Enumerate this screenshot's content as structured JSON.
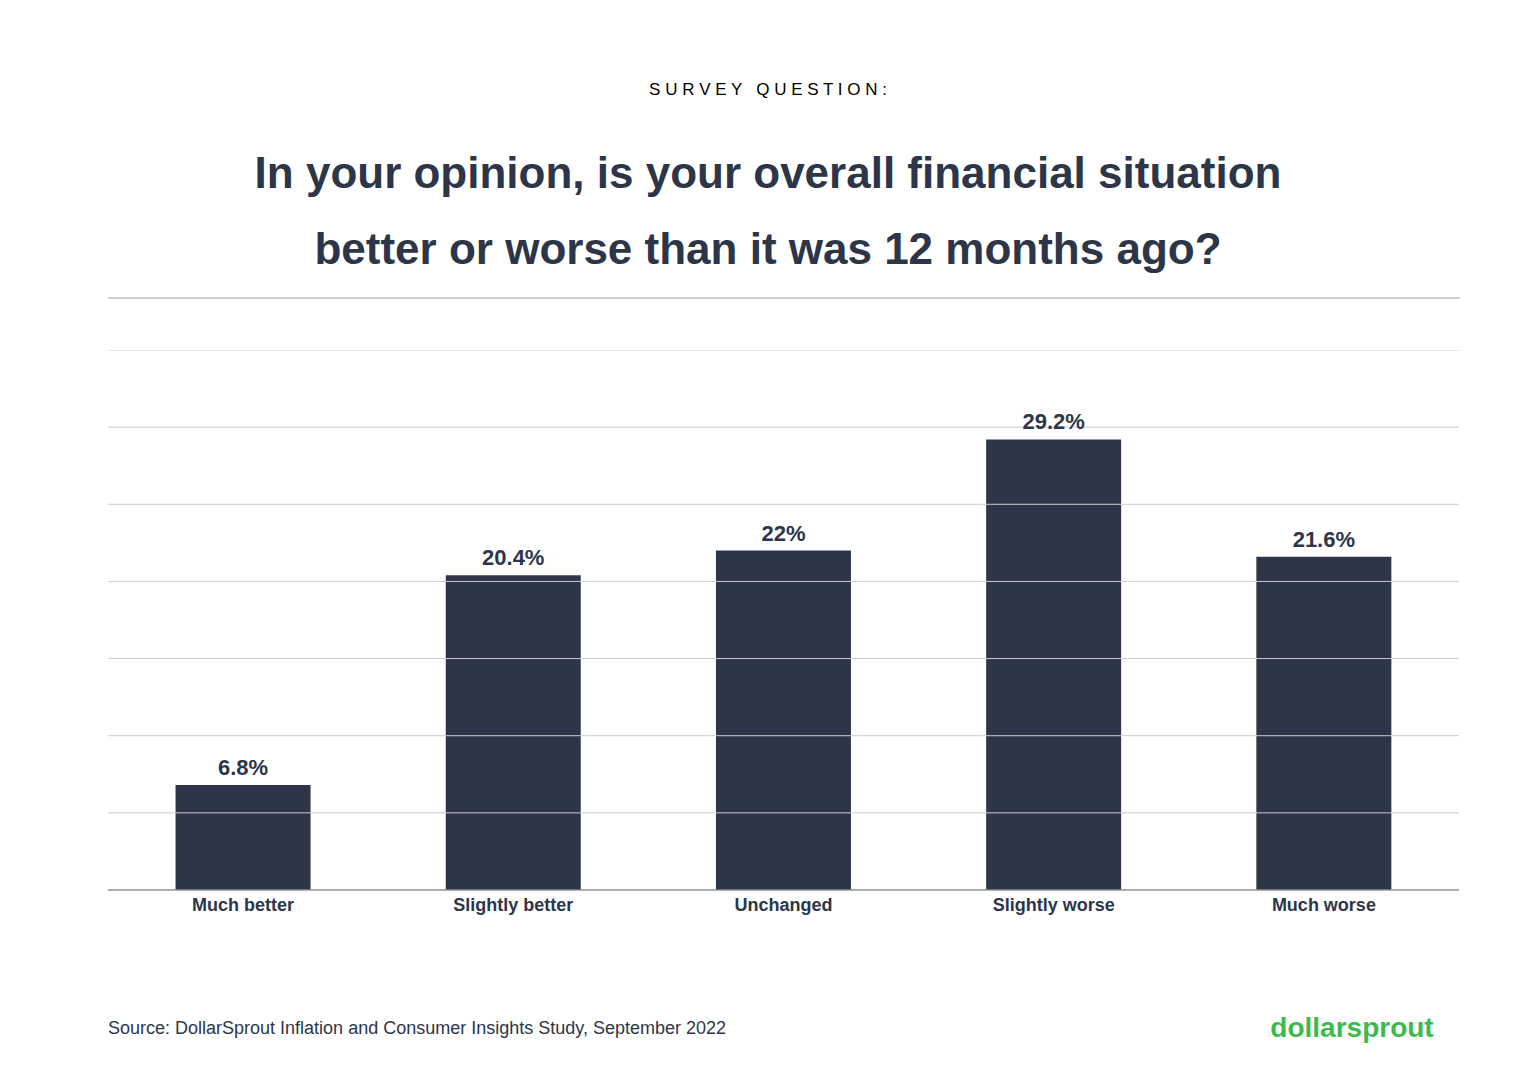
{
  "chart_data": {
    "type": "bar",
    "title": "In your opinion, is your overall financial situation\nbetter or worse than it was 12 months ago?",
    "annotations": [
      {
        "text": "S U R V E Y   Q U E S T I O N :"
      },
      {
        "text": "Source: DollarSprout Inflation and Consumer Insights Study, September 2022"
      },
      {
        "text": "dollarsprout",
        "color": "#3dba4e"
      }
    ],
    "categories": [
      "Much better",
      "Slightly better",
      "Unchanged",
      "Slightly worse",
      "Much worse"
    ],
    "values": [
      6.8,
      20.4,
      22.0,
      29.2,
      21.6
    ],
    "value_labels": [
      "6.8%",
      "20.4%",
      "22%",
      "29.2%",
      "21.6%"
    ],
    "data_labels": true,
    "color": "#2d3648",
    "ylim": [
      0,
      35
    ],
    "yticks": [
      0,
      5,
      10,
      15,
      20,
      25,
      30,
      35
    ],
    "grid": true,
    "tick_labels": "x"
  }
}
